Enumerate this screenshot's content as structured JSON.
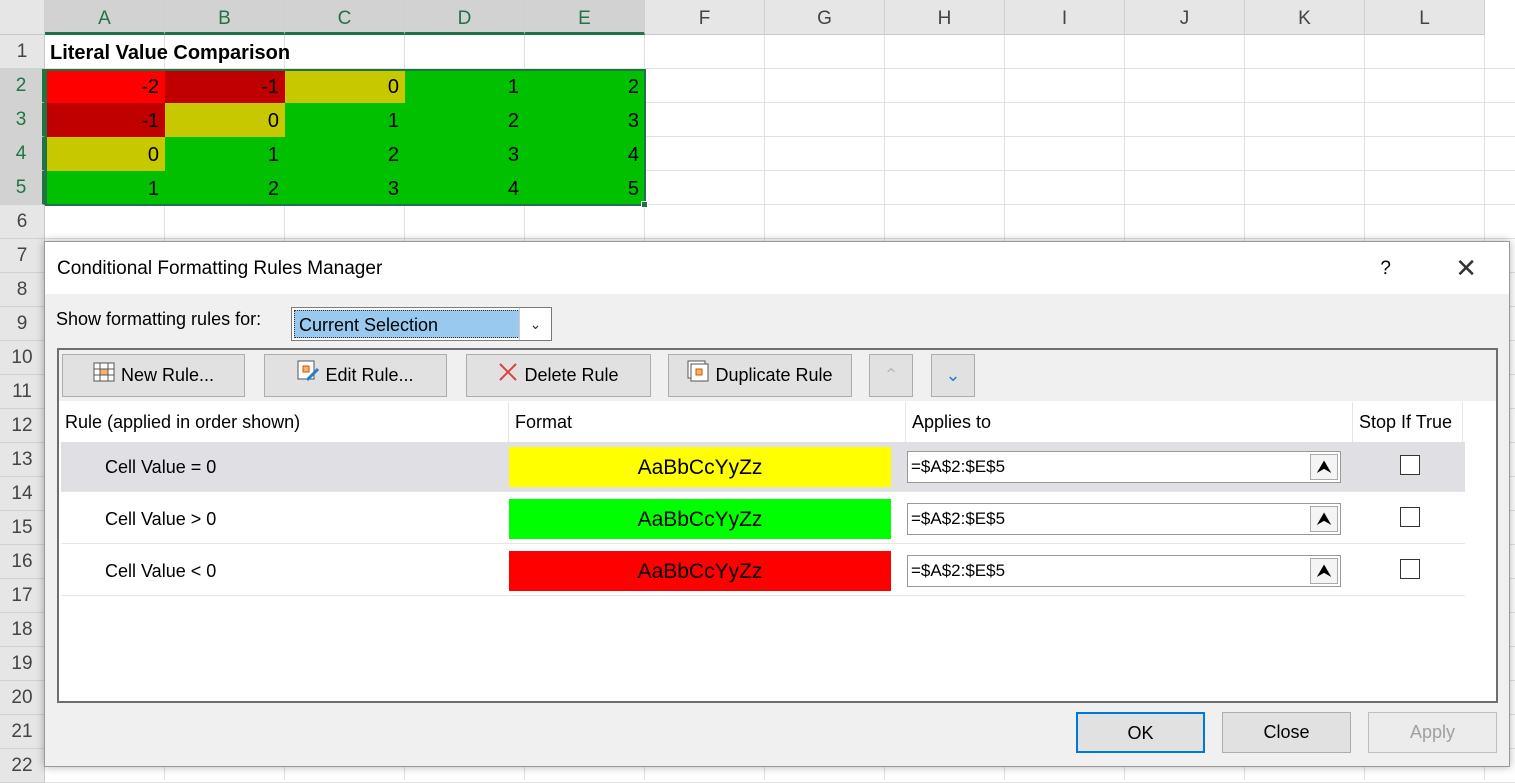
{
  "sheet": {
    "columns": [
      "A",
      "B",
      "C",
      "D",
      "E",
      "F",
      "G",
      "H",
      "I",
      "J",
      "K",
      "L"
    ],
    "rows": [
      "1",
      "2",
      "3",
      "4",
      "5",
      "6",
      "7",
      "8",
      "9",
      "10",
      "11",
      "12",
      "13",
      "14",
      "15",
      "16",
      "17",
      "18",
      "19",
      "20",
      "21",
      "22"
    ],
    "title": "Literal Value Comparison",
    "values": [
      [
        "-2",
        "-1",
        "0",
        "1",
        "2"
      ],
      [
        "-1",
        "0",
        "1",
        "2",
        "3"
      ],
      [
        "0",
        "1",
        "2",
        "3",
        "4"
      ],
      [
        "1",
        "2",
        "3",
        "4",
        "5"
      ]
    ],
    "colors": {
      "red": "#ff0000",
      "dark_red": "#c00000",
      "yellow": "#c8c800",
      "green": "#00c000"
    }
  },
  "dialog": {
    "title": "Conditional Formatting Rules Manager",
    "help": "?",
    "show_label": "Show formatting rules for:",
    "show_value": "Current Selection",
    "toolbar": {
      "new": "New Rule...",
      "edit": "Edit Rule...",
      "delete": "Delete Rule",
      "duplicate": "Duplicate Rule"
    },
    "headers": [
      "Rule (applied in order shown)",
      "Format",
      "Applies to",
      "Stop If True"
    ],
    "rules": [
      {
        "rule": "Cell Value = 0",
        "preview": "AaBbCcYyZz",
        "fill": "#ffff00",
        "applies": "=$A$2:$E$5",
        "stop": false
      },
      {
        "rule": "Cell Value > 0",
        "preview": "AaBbCcYyZz",
        "fill": "#00ff00",
        "applies": "=$A$2:$E$5",
        "stop": false
      },
      {
        "rule": "Cell Value < 0",
        "preview": "AaBbCcYyZz",
        "fill": "#ff0000",
        "applies": "=$A$2:$E$5",
        "stop": false
      }
    ],
    "buttons": {
      "ok": "OK",
      "close": "Close",
      "apply": "Apply"
    }
  }
}
